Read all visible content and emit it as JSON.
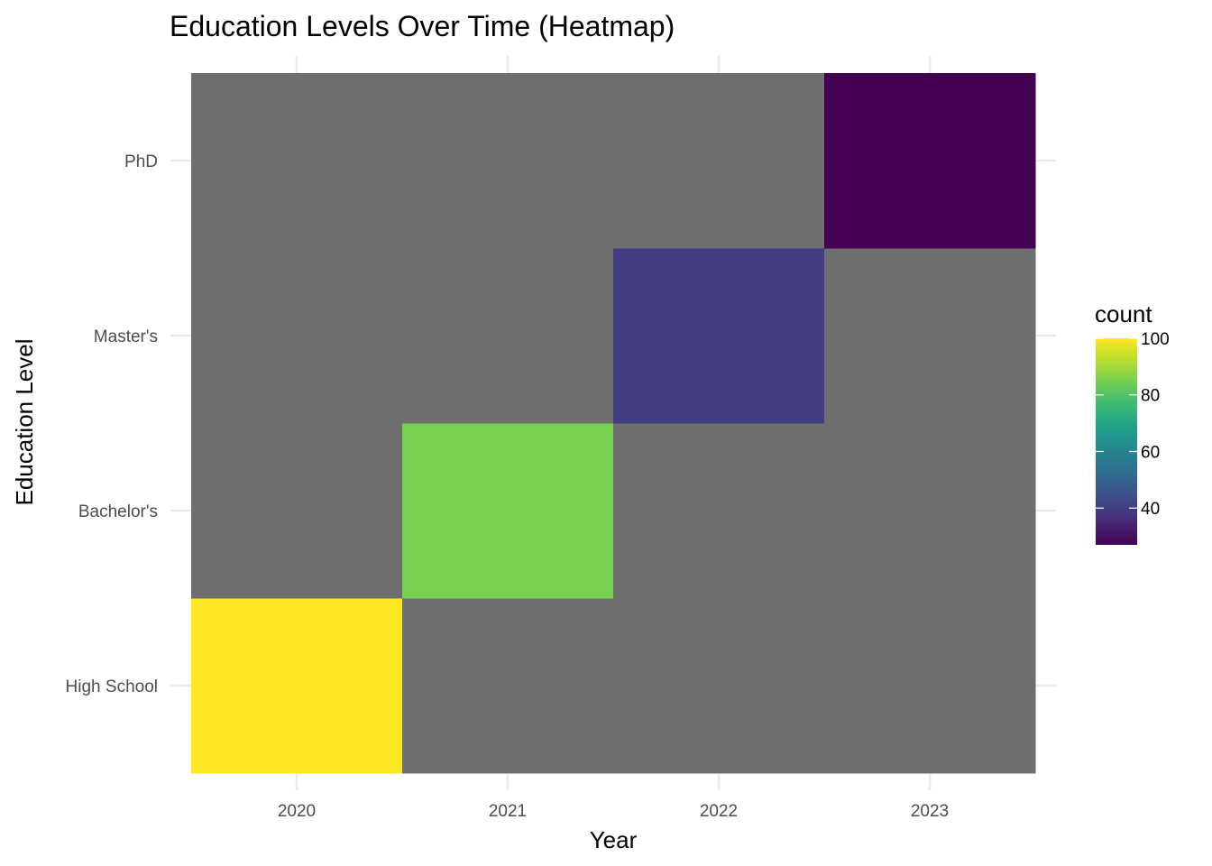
{
  "chart_data": {
    "type": "heatmap",
    "title": "Education Levels Over Time (Heatmap)",
    "xlabel": "Year",
    "ylabel": "Education Level",
    "x_categories": [
      "2020",
      "2021",
      "2022",
      "2023"
    ],
    "y_categories": [
      "High School",
      "Bachelor's",
      "Master's",
      "PhD"
    ],
    "cells": [
      {
        "x": "2020",
        "y": "High School",
        "count": 100
      },
      {
        "x": "2021",
        "y": "Bachelor's",
        "count": 85
      },
      {
        "x": "2022",
        "y": "Master's",
        "count": 40
      },
      {
        "x": "2023",
        "y": "PhD",
        "count": 27
      }
    ],
    "missing_color": "#6e6e6e",
    "legend": {
      "title": "count",
      "ticks": [
        40,
        60,
        80,
        100
      ],
      "range": [
        27,
        100
      ],
      "placement": "right",
      "palette": "viridis"
    },
    "grid": true
  }
}
